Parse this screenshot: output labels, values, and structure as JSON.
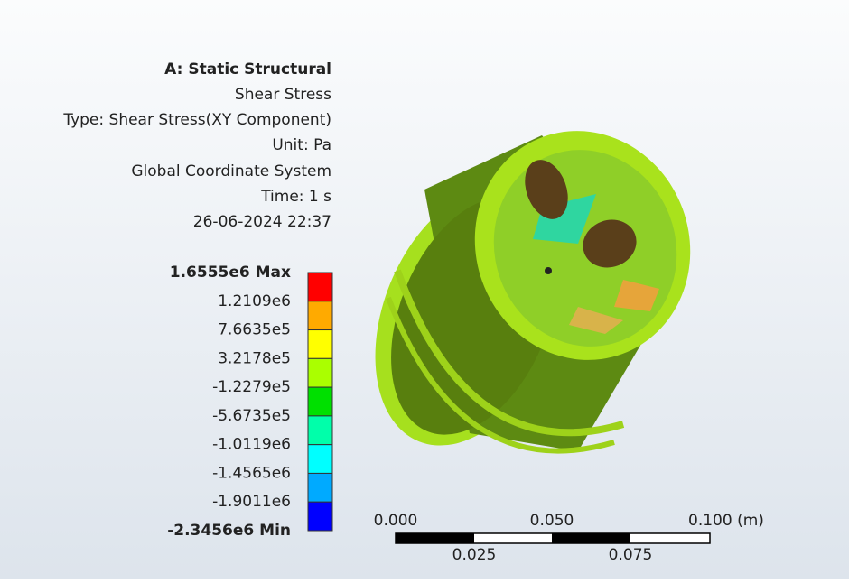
{
  "header": {
    "lines": [
      "A: Static Structural",
      "Shear Stress",
      "Type: Shear Stress(XY Component)",
      "Unit: Pa",
      "Global Coordinate System",
      "Time: 1 s",
      "26-06-2024 22:37"
    ]
  },
  "legend": {
    "labels": [
      "1.6555e6 Max",
      "1.2109e6",
      "7.6635e5",
      "3.2178e5",
      "-1.2279e5",
      "-5.6735e5",
      "-1.0119e6",
      "-1.4565e6",
      "-1.9011e6",
      "-2.3456e6 Min"
    ],
    "colors": [
      "#ff0000",
      "#ffaa00",
      "#ffff00",
      "#aaff00",
      "#00e000",
      "#00ffaa",
      "#00ffff",
      "#00aaff",
      "#0000ff"
    ]
  },
  "scale_bar": {
    "top_labels": [
      "0.000",
      "0.050",
      "0.100 (m)"
    ],
    "bottom_labels": [
      "0.025",
      "0.075"
    ]
  }
}
